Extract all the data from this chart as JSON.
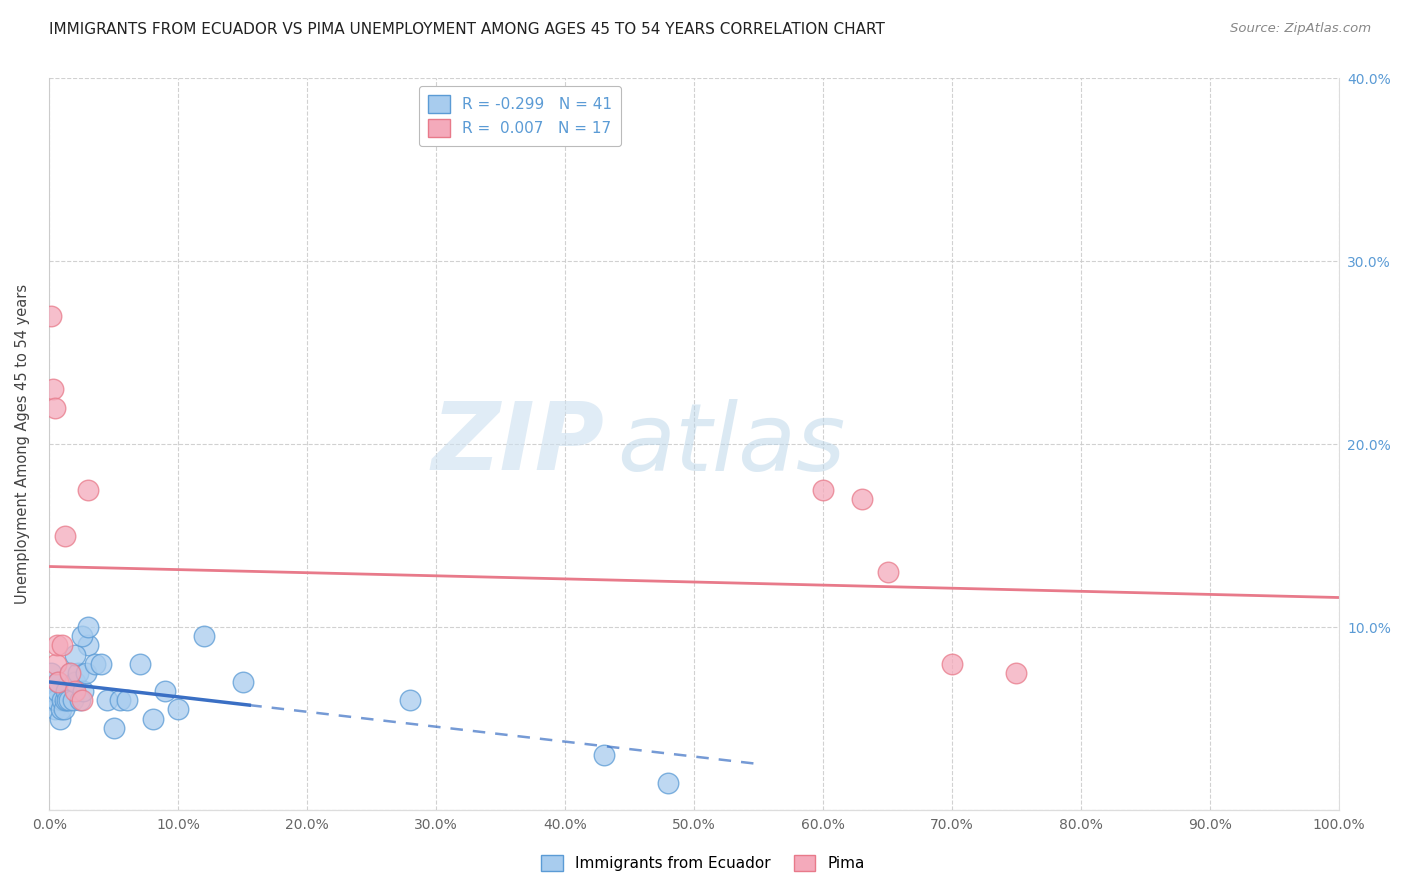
{
  "title": "IMMIGRANTS FROM ECUADOR VS PIMA UNEMPLOYMENT AMONG AGES 45 TO 54 YEARS CORRELATION CHART",
  "source": "Source: ZipAtlas.com",
  "ylabel": "Unemployment Among Ages 45 to 54 years",
  "xlim": [
    0,
    1.0
  ],
  "ylim": [
    0,
    0.4
  ],
  "xticks": [
    0.0,
    0.1,
    0.2,
    0.3,
    0.4,
    0.5,
    0.6,
    0.7,
    0.8,
    0.9,
    1.0
  ],
  "xticklabels": [
    "0.0%",
    "10.0%",
    "20.0%",
    "30.0%",
    "40.0%",
    "50.0%",
    "60.0%",
    "70.0%",
    "80.0%",
    "90.0%",
    "100.0%"
  ],
  "yticks": [
    0.0,
    0.1,
    0.2,
    0.3,
    0.4
  ],
  "yticklabels_right": [
    "",
    "10.0%",
    "20.0%",
    "30.0%",
    "40.0%"
  ],
  "legend_r1": "R = -0.299",
  "legend_n1": "N = 41",
  "legend_r2": "R =  0.007",
  "legend_n2": "N = 17",
  "color_blue_fill": "#A8CCEE",
  "color_pink_fill": "#F4AABB",
  "color_blue_edge": "#5B9BD5",
  "color_pink_edge": "#E87A8A",
  "color_blue_line": "#3A6FC4",
  "color_pink_line": "#E87A8A",
  "color_axis_right": "#5B9BD5",
  "watermark_zip": "ZIP",
  "watermark_atlas": "atlas",
  "blue_x": [
    0.001,
    0.002,
    0.003,
    0.004,
    0.005,
    0.006,
    0.007,
    0.008,
    0.009,
    0.01,
    0.011,
    0.012,
    0.013,
    0.014,
    0.015,
    0.016,
    0.018,
    0.02,
    0.022,
    0.024,
    0.026,
    0.028,
    0.03,
    0.035,
    0.04,
    0.045,
    0.05,
    0.055,
    0.06,
    0.07,
    0.08,
    0.09,
    0.1,
    0.12,
    0.15,
    0.02,
    0.025,
    0.03,
    0.28,
    0.43,
    0.48
  ],
  "blue_y": [
    0.075,
    0.065,
    0.06,
    0.055,
    0.06,
    0.065,
    0.07,
    0.05,
    0.055,
    0.06,
    0.055,
    0.06,
    0.065,
    0.06,
    0.06,
    0.075,
    0.06,
    0.07,
    0.075,
    0.06,
    0.065,
    0.075,
    0.09,
    0.08,
    0.08,
    0.06,
    0.045,
    0.06,
    0.06,
    0.08,
    0.05,
    0.065,
    0.055,
    0.095,
    0.07,
    0.085,
    0.095,
    0.1,
    0.06,
    0.03,
    0.015
  ],
  "pink_x": [
    0.001,
    0.003,
    0.004,
    0.005,
    0.006,
    0.007,
    0.01,
    0.012,
    0.016,
    0.02,
    0.025,
    0.03,
    0.6,
    0.63,
    0.65,
    0.7,
    0.75
  ],
  "pink_y": [
    0.27,
    0.23,
    0.22,
    0.08,
    0.09,
    0.07,
    0.09,
    0.15,
    0.075,
    0.065,
    0.06,
    0.175,
    0.175,
    0.17,
    0.13,
    0.08,
    0.075
  ],
  "blue_line_x_solid_start": 0.0,
  "blue_line_x_solid_end": 0.155,
  "blue_line_x_dash_end": 0.55,
  "pink_line_x_start": 0.0,
  "pink_line_x_end": 1.0
}
